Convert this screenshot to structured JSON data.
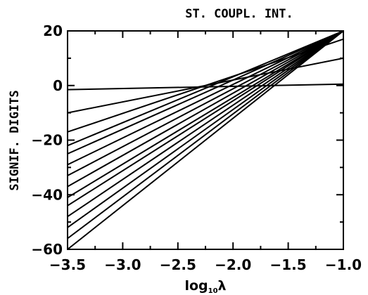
{
  "chart_data": {
    "type": "line",
    "title": "ST. COUPL. INT.",
    "ylabel": "SIGNIF. DIGITS",
    "xlabel": {
      "base": "log",
      "subscript": "10",
      "symbol": "λ"
    },
    "xlim": [
      -3.5,
      -1.0
    ],
    "ylim": [
      -60,
      20
    ],
    "x_ticks": [
      -3.5,
      -3.0,
      -2.5,
      -2.0,
      -1.5,
      -1.0
    ],
    "x_tick_labels": [
      "−3.5",
      "−3.0",
      "−2.5",
      "−2.0",
      "−1.5",
      "−1.0"
    ],
    "y_ticks": [
      -60,
      -40,
      -20,
      0,
      20
    ],
    "y_tick_labels": [
      "−60",
      "−40",
      "−20",
      "0",
      "20"
    ],
    "grid": false,
    "legend": "none",
    "line_color": "#000000",
    "series": [
      {
        "x": [
          -3.5,
          -1.0
        ],
        "y": [
          -60,
          20
        ]
      },
      {
        "x": [
          -3.5,
          -1.0
        ],
        "y": [
          -56,
          20
        ]
      },
      {
        "x": [
          -3.5,
          -1.0
        ],
        "y": [
          -52,
          20
        ]
      },
      {
        "x": [
          -3.5,
          -1.0
        ],
        "y": [
          -48,
          20
        ]
      },
      {
        "x": [
          -3.5,
          -1.0
        ],
        "y": [
          -44,
          20
        ]
      },
      {
        "x": [
          -3.5,
          -1.0
        ],
        "y": [
          -41,
          20
        ]
      },
      {
        "x": [
          -3.5,
          -1.0
        ],
        "y": [
          -37,
          20
        ]
      },
      {
        "x": [
          -3.5,
          -1.0
        ],
        "y": [
          -33,
          20
        ]
      },
      {
        "x": [
          -3.5,
          -1.0
        ],
        "y": [
          -29,
          20
        ]
      },
      {
        "x": [
          -3.5,
          -1.0
        ],
        "y": [
          -25,
          20
        ]
      },
      {
        "x": [
          -3.5,
          -1.0
        ],
        "y": [
          -22,
          20
        ]
      },
      {
        "x": [
          -3.5,
          -1.0
        ],
        "y": [
          -17,
          17
        ]
      },
      {
        "x": [
          -3.5,
          -1.0
        ],
        "y": [
          -10,
          10
        ]
      },
      {
        "x": [
          -3.5,
          -1.0
        ],
        "y": [
          -1.5,
          0.5
        ]
      }
    ]
  }
}
